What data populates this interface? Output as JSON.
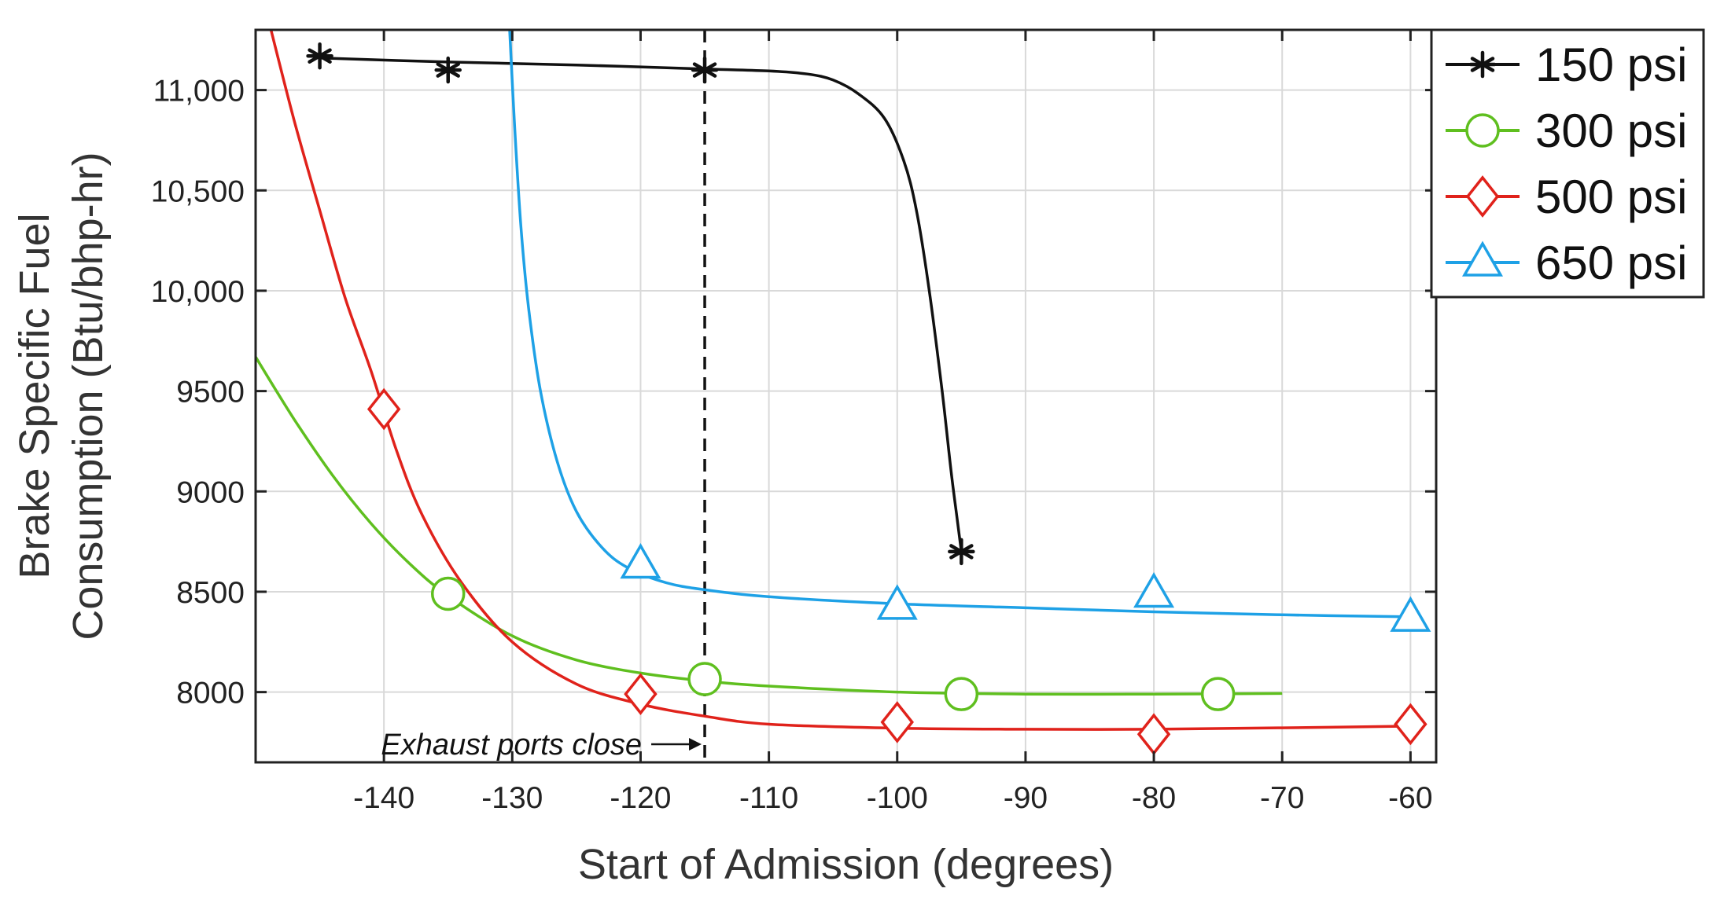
{
  "chart_data": {
    "type": "line",
    "xlabel": "Start of Admission (degrees)",
    "ylabel_lines": [
      "Brake Specific Fuel",
      "Consumption (Btu/bhp-hr)"
    ],
    "xlim": [
      -150,
      -58
    ],
    "ylim": [
      7650,
      11300
    ],
    "x_ticks": [
      -140,
      -130,
      -120,
      -110,
      -100,
      -90,
      -80,
      -70,
      -60
    ],
    "x_tick_labels": [
      "-140",
      "-130",
      "-120",
      "-110",
      "-100",
      "-90",
      "-80",
      "-70",
      "-60"
    ],
    "y_ticks": [
      8000,
      8500,
      9000,
      9500,
      10000,
      10500,
      11000
    ],
    "y_tick_labels": [
      "8000",
      "8500",
      "9000",
      "9500",
      "10,000",
      "10,500",
      "11,000"
    ],
    "grid": true,
    "legend_position": "outside-top-right",
    "series": [
      {
        "name": "150 psi",
        "color": "#111111",
        "marker": "asterisk",
        "points": [
          [
            -145,
            11170
          ],
          [
            -135,
            11100
          ],
          [
            -115,
            11100
          ],
          [
            -95,
            8700
          ]
        ],
        "curve": [
          [
            -145,
            11160
          ],
          [
            -135,
            11140
          ],
          [
            -125,
            11125
          ],
          [
            -115,
            11105
          ],
          [
            -110,
            11095
          ],
          [
            -107,
            11080
          ],
          [
            -105,
            11050
          ],
          [
            -103,
            10980
          ],
          [
            -101,
            10860
          ],
          [
            -99.5,
            10650
          ],
          [
            -98.5,
            10400
          ],
          [
            -97.5,
            10000
          ],
          [
            -96.5,
            9500
          ],
          [
            -95.8,
            9100
          ],
          [
            -95.3,
            8850
          ],
          [
            -95,
            8700
          ]
        ]
      },
      {
        "name": "300 psi",
        "color": "#5fbf1f",
        "marker": "circle",
        "points": [
          [
            -135,
            8490
          ],
          [
            -115,
            8065
          ],
          [
            -95,
            7990
          ],
          [
            -75,
            7990
          ]
        ],
        "curve": [
          [
            -150,
            9670
          ],
          [
            -147,
            9360
          ],
          [
            -144,
            9080
          ],
          [
            -141,
            8840
          ],
          [
            -138,
            8640
          ],
          [
            -135,
            8480
          ],
          [
            -130,
            8280
          ],
          [
            -125,
            8160
          ],
          [
            -120,
            8095
          ],
          [
            -115,
            8055
          ],
          [
            -110,
            8030
          ],
          [
            -100,
            8000
          ],
          [
            -90,
            7990
          ],
          [
            -80,
            7990
          ],
          [
            -70,
            7993
          ]
        ]
      },
      {
        "name": "500 psi",
        "color": "#e0221b",
        "marker": "diamond",
        "points": [
          [
            -140,
            9410
          ],
          [
            -120,
            7990
          ],
          [
            -100,
            7850
          ],
          [
            -80,
            7790
          ],
          [
            -60,
            7840
          ]
        ],
        "curve": [
          [
            -149,
            11350
          ],
          [
            -147,
            10850
          ],
          [
            -145,
            10400
          ],
          [
            -143,
            9960
          ],
          [
            -141,
            9600
          ],
          [
            -139,
            9200
          ],
          [
            -137,
            8880
          ],
          [
            -134,
            8550
          ],
          [
            -130,
            8250
          ],
          [
            -125,
            8040
          ],
          [
            -120,
            7940
          ],
          [
            -115,
            7880
          ],
          [
            -110,
            7840
          ],
          [
            -100,
            7820
          ],
          [
            -90,
            7815
          ],
          [
            -80,
            7815
          ],
          [
            -70,
            7822
          ],
          [
            -60,
            7830
          ]
        ]
      },
      {
        "name": "650 psi",
        "color": "#1ea1e6",
        "marker": "triangle",
        "points": [
          [
            -120,
            8635
          ],
          [
            -100,
            8430
          ],
          [
            -80,
            8490
          ],
          [
            -60,
            8370
          ]
        ],
        "curve": [
          [
            -130.2,
            11300
          ],
          [
            -129.8,
            10800
          ],
          [
            -129.3,
            10300
          ],
          [
            -128.7,
            9900
          ],
          [
            -127.8,
            9500
          ],
          [
            -126.5,
            9150
          ],
          [
            -125,
            8900
          ],
          [
            -123,
            8720
          ],
          [
            -121,
            8620
          ],
          [
            -118,
            8545
          ],
          [
            -115,
            8510
          ],
          [
            -110,
            8475
          ],
          [
            -100,
            8440
          ],
          [
            -90,
            8420
          ],
          [
            -80,
            8400
          ],
          [
            -70,
            8385
          ],
          [
            -60,
            8375
          ]
        ]
      }
    ],
    "vline": {
      "x": -115,
      "style": "dashed",
      "color": "#111111"
    },
    "annotation": {
      "text": "Exhaust ports close",
      "x": -115,
      "y": 7740
    }
  }
}
